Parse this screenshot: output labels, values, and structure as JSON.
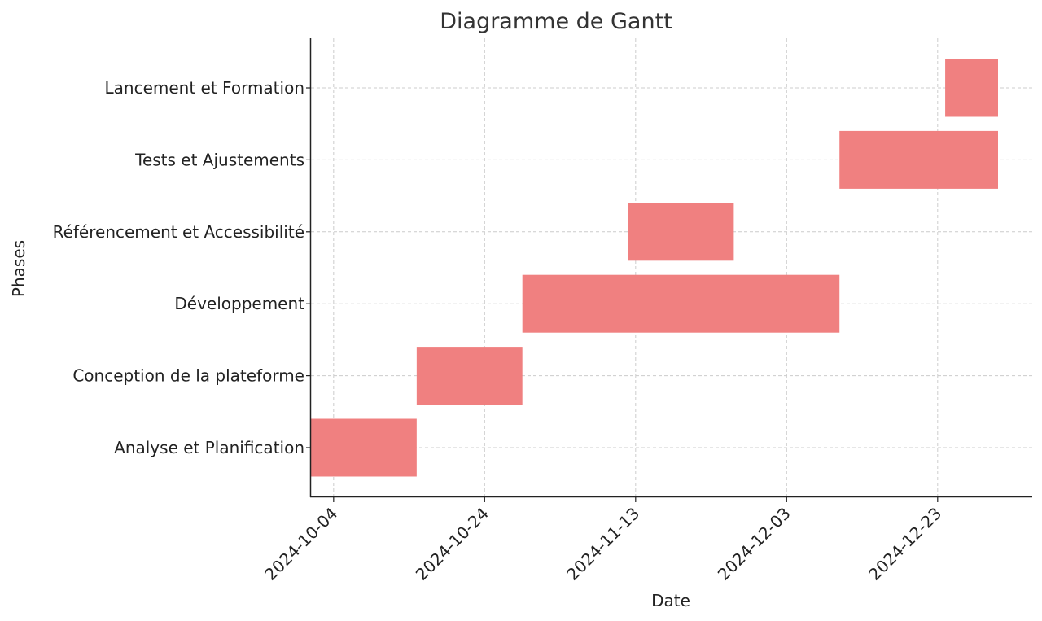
{
  "chart_data": {
    "type": "bar",
    "orientation": "horizontal",
    "title": "Diagramme de Gantt",
    "xlabel": "Date",
    "ylabel": "Phases",
    "grid": true,
    "x_axis": "date",
    "xlim": [
      "2024-10-01",
      "2024-12-31"
    ],
    "xticks": [
      "2024-10-04",
      "2024-10-24",
      "2024-11-13",
      "2024-12-03",
      "2024-12-23"
    ],
    "bar_color": "#f08080",
    "tasks": [
      {
        "name": "Analyse et Planification",
        "start": "2024-10-01",
        "end": "2024-10-15"
      },
      {
        "name": "Conception de la plateforme",
        "start": "2024-10-15",
        "end": "2024-10-29"
      },
      {
        "name": "Développement",
        "start": "2024-10-29",
        "end": "2024-12-10"
      },
      {
        "name": "Référencement et Accessibilité",
        "start": "2024-11-12",
        "end": "2024-11-26"
      },
      {
        "name": "Tests et Ajustements",
        "start": "2024-12-10",
        "end": "2024-12-31"
      },
      {
        "name": "Lancement et Formation",
        "start": "2024-12-24",
        "end": "2024-12-31"
      }
    ]
  }
}
